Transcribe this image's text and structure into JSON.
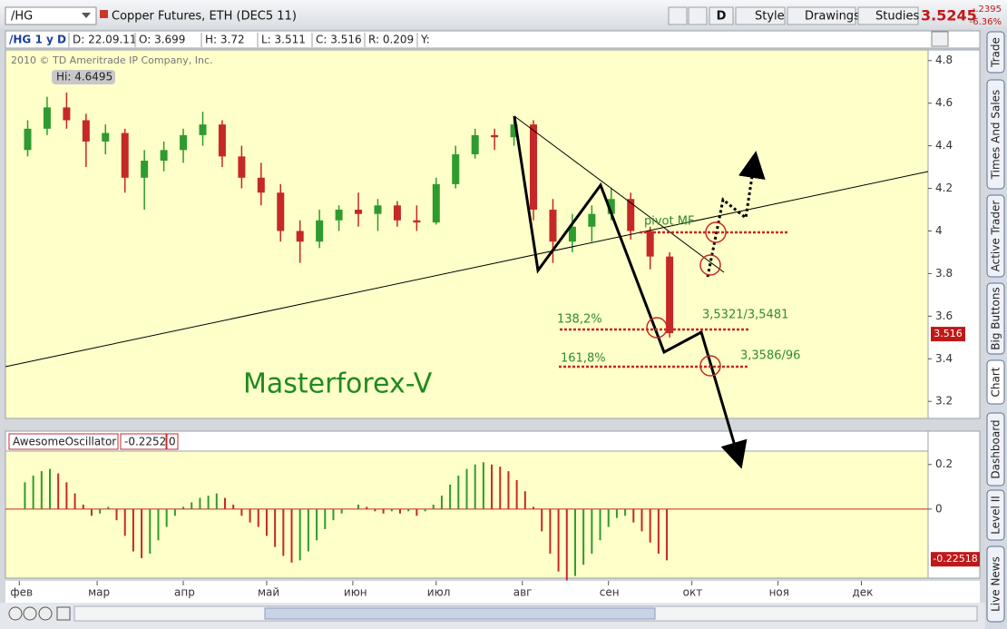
{
  "toolbar": {
    "symbol": "/HG",
    "description": "Copper Futures, ETH (DEC5 11)",
    "period": "D",
    "style": "Style",
    "drawings": "Drawings",
    "studies": "Studies",
    "last": "3.5245",
    "change": "-.2395",
    "change_pct": "-6.36%"
  },
  "info": [
    "/HG 1 y D",
    "D: 22.09.11",
    "O: 3.699",
    "H: 3.72",
    "L: 3.511",
    "C: 3.516",
    "R: 0.209",
    "Y:"
  ],
  "side_tabs": [
    "Trade",
    "Times And Sales",
    "Active Trader",
    "Big Buttons",
    "Chart",
    "Dashboard",
    "Level II",
    "Live News"
  ],
  "chart_data": [
    {
      "type": "candlestick",
      "copyright": "2010 © TD Ameritrade IP Company, Inc.",
      "hi_label": "Hi: 4.6495",
      "last_price": 3.516,
      "x": [
        3,
        10,
        17,
        24,
        31,
        38,
        45,
        52,
        59,
        66,
        73,
        80,
        87,
        94,
        101,
        108,
        115,
        122,
        129,
        136,
        143,
        150,
        157,
        164,
        171,
        178,
        185,
        192,
        199,
        206,
        213,
        220,
        227,
        234
      ],
      "open": [
        4.38,
        4.48,
        4.58,
        4.52,
        4.42,
        4.46,
        4.25,
        4.33,
        4.38,
        4.45,
        4.5,
        4.35,
        4.25,
        4.18,
        4.0,
        3.95,
        4.05,
        4.1,
        4.08,
        4.12,
        4.05,
        4.04,
        4.22,
        4.36,
        4.45,
        4.44,
        4.5,
        4.1,
        3.95,
        4.02,
        4.08,
        4.15,
        4.0,
        3.88
      ],
      "high": [
        4.52,
        4.63,
        4.65,
        4.55,
        4.5,
        4.48,
        4.38,
        4.42,
        4.48,
        4.56,
        4.52,
        4.4,
        4.32,
        4.22,
        4.05,
        4.1,
        4.12,
        4.18,
        4.15,
        4.14,
        4.12,
        4.25,
        4.4,
        4.48,
        4.48,
        4.54,
        4.52,
        4.15,
        4.08,
        4.12,
        4.2,
        4.18,
        4.02,
        3.9
      ],
      "low": [
        4.35,
        4.45,
        4.48,
        4.3,
        4.36,
        4.18,
        4.1,
        4.28,
        4.32,
        4.4,
        4.3,
        4.2,
        4.12,
        3.95,
        3.85,
        3.92,
        4.0,
        4.02,
        4.0,
        4.02,
        4.0,
        4.03,
        4.2,
        4.34,
        4.38,
        4.4,
        4.05,
        3.85,
        3.9,
        3.95,
        4.05,
        3.96,
        3.82,
        3.5
      ],
      "close": [
        4.48,
        4.58,
        4.52,
        4.42,
        4.46,
        4.25,
        4.33,
        4.38,
        4.45,
        4.5,
        4.35,
        4.25,
        4.18,
        4.0,
        3.95,
        4.05,
        4.1,
        4.08,
        4.12,
        4.05,
        4.04,
        4.22,
        4.36,
        4.45,
        4.44,
        4.5,
        4.1,
        3.95,
        4.02,
        4.08,
        4.15,
        4.0,
        3.88,
        3.52
      ],
      "up_color": "#2e9b2e",
      "down_color": "#c62828",
      "xlim": [
        -5,
        327
      ],
      "xticks": [
        {
          "value": 0,
          "label": "фев"
        },
        {
          "value": 28,
          "label": "мар"
        },
        {
          "value": 59,
          "label": "апр"
        },
        {
          "value": 89,
          "label": "май"
        },
        {
          "value": 120,
          "label": "июн"
        },
        {
          "value": 150,
          "label": "июл"
        },
        {
          "value": 181,
          "label": "авг"
        },
        {
          "value": 212,
          "label": "сен"
        },
        {
          "value": 242,
          "label": "окт"
        },
        {
          "value": 273,
          "label": "ноя"
        },
        {
          "value": 303,
          "label": "дек"
        }
      ],
      "ylim": [
        3.12,
        4.85
      ],
      "yticks": [
        4.8,
        4.6,
        4.4,
        4.2,
        4,
        3.8,
        3.6,
        3.4,
        3.2
      ],
      "annotations": {
        "pivot": "pivot MF",
        "fib1": "138,2%",
        "fib1_price": "3,5321/3,5481",
        "fib2": "161,8%",
        "fib2_price": "3,3586/96",
        "brand": "Masterforex-V"
      }
    },
    {
      "type": "histogram",
      "name": "AwesomeOscillator",
      "current": "-0.2252",
      "param": "0",
      "last_value": -0.22518,
      "x": [
        2,
        5,
        8,
        11,
        14,
        17,
        20,
        23,
        26,
        29,
        32,
        35,
        38,
        41,
        44,
        47,
        50,
        53,
        56,
        59,
        62,
        65,
        68,
        71,
        74,
        77,
        80,
        83,
        86,
        89,
        92,
        95,
        98,
        101,
        104,
        107,
        110,
        113,
        116,
        119,
        122,
        125,
        128,
        131,
        134,
        137,
        140,
        143,
        146,
        149,
        152,
        155,
        158,
        161,
        164,
        167,
        170,
        173,
        176,
        179,
        182,
        185,
        188,
        191,
        194,
        197,
        200,
        203,
        206,
        209,
        212,
        215,
        218,
        221,
        224,
        227,
        230,
        233
      ],
      "values": [
        0.12,
        0.15,
        0.17,
        0.18,
        0.16,
        0.12,
        0.07,
        0.02,
        -0.03,
        -0.02,
        0.01,
        -0.05,
        -0.12,
        -0.19,
        -0.22,
        -0.2,
        -0.14,
        -0.08,
        -0.03,
        0.01,
        0.03,
        0.05,
        0.06,
        0.07,
        0.05,
        0.02,
        -0.03,
        -0.06,
        -0.08,
        -0.12,
        -0.17,
        -0.21,
        -0.24,
        -0.23,
        -0.19,
        -0.14,
        -0.09,
        -0.05,
        -0.02,
        0.0,
        0.02,
        0.01,
        -0.01,
        -0.02,
        -0.01,
        -0.02,
        -0.01,
        -0.03,
        -0.01,
        0.02,
        0.06,
        0.11,
        0.15,
        0.18,
        0.2,
        0.21,
        0.2,
        0.19,
        0.17,
        0.13,
        0.08,
        0.01,
        -0.1,
        -0.2,
        -0.28,
        -0.32,
        -0.3,
        -0.25,
        -0.2,
        -0.14,
        -0.08,
        -0.04,
        -0.03,
        -0.06,
        -0.1,
        -0.15,
        -0.2,
        -0.23
      ],
      "up_color": "#2e9b2e",
      "down_color": "#c62828",
      "xlim": [
        -5,
        327
      ],
      "ylim": [
        -0.31,
        0.26
      ],
      "yticks": [
        0.2,
        0
      ]
    }
  ]
}
